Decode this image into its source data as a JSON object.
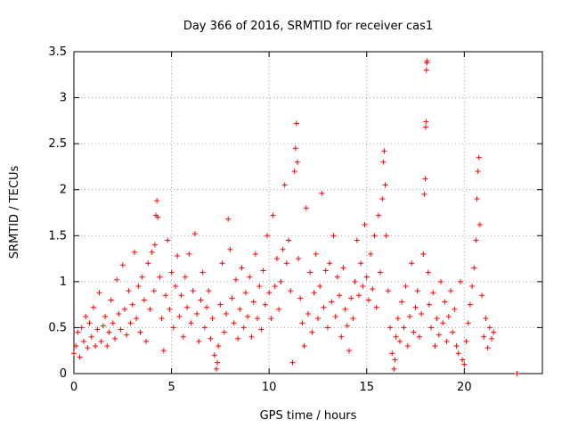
{
  "chart_data": {
    "type": "scatter",
    "title": "Day 366 of 2016, SRMTID for receiver cas1",
    "xlabel": "GPS time / hours",
    "ylabel": "SRMTID / TECUs",
    "xlim": [
      0,
      24
    ],
    "ylim": [
      0,
      3.5
    ],
    "xticks": [
      0,
      5,
      10,
      15,
      20
    ],
    "xtick_labels": [
      "0",
      "5",
      "10",
      "15",
      "20"
    ],
    "yticks": [
      0,
      0.5,
      1,
      1.5,
      2,
      2.5,
      3,
      3.5
    ],
    "ytick_labels": [
      "0",
      "0.5",
      "1",
      "1.5",
      "2",
      "2.5",
      "3",
      "3.5"
    ],
    "grid": true,
    "marker": "+",
    "color": "#ff0000",
    "series": [
      {
        "name": "SRMTID",
        "points": [
          [
            0.0,
            0.22
          ],
          [
            0.1,
            0.3
          ],
          [
            0.2,
            0.45
          ],
          [
            0.3,
            0.18
          ],
          [
            0.4,
            0.5
          ],
          [
            0.5,
            0.35
          ],
          [
            0.6,
            0.62
          ],
          [
            0.7,
            0.28
          ],
          [
            0.8,
            0.55
          ],
          [
            0.9,
            0.4
          ],
          [
            1.0,
            0.72
          ],
          [
            1.1,
            0.3
          ],
          [
            1.2,
            0.48
          ],
          [
            1.3,
            0.88
          ],
          [
            1.4,
            0.35
          ],
          [
            1.5,
            0.52
          ],
          [
            1.6,
            0.62
          ],
          [
            1.7,
            0.3
          ],
          [
            1.8,
            0.45
          ],
          [
            1.9,
            0.8
          ],
          [
            2.0,
            0.55
          ],
          [
            2.1,
            0.38
          ],
          [
            2.2,
            1.02
          ],
          [
            2.3,
            0.65
          ],
          [
            2.4,
            0.48
          ],
          [
            2.5,
            1.18
          ],
          [
            2.6,
            0.7
          ],
          [
            2.7,
            0.42
          ],
          [
            2.8,
            0.9
          ],
          [
            2.9,
            0.55
          ],
          [
            3.0,
            0.75
          ],
          [
            3.1,
            1.32
          ],
          [
            3.2,
            0.6
          ],
          [
            3.3,
            0.95
          ],
          [
            3.4,
            0.45
          ],
          [
            3.5,
            1.05
          ],
          [
            3.6,
            0.8
          ],
          [
            3.7,
            0.35
          ],
          [
            3.8,
            1.2
          ],
          [
            3.9,
            0.7
          ],
          [
            4.0,
            1.32
          ],
          [
            4.1,
            0.9
          ],
          [
            4.15,
            1.4
          ],
          [
            4.2,
            1.72
          ],
          [
            4.25,
            1.88
          ],
          [
            4.3,
            1.7
          ],
          [
            4.4,
            1.05
          ],
          [
            4.5,
            0.6
          ],
          [
            4.6,
            0.25
          ],
          [
            4.7,
            0.85
          ],
          [
            4.8,
            1.45
          ],
          [
            4.9,
            0.7
          ],
          [
            5.0,
            1.1
          ],
          [
            5.1,
            0.5
          ],
          [
            5.2,
            0.95
          ],
          [
            5.3,
            1.28
          ],
          [
            5.4,
            0.62
          ],
          [
            5.5,
            0.85
          ],
          [
            5.6,
            0.4
          ],
          [
            5.7,
            1.05
          ],
          [
            5.8,
            0.72
          ],
          [
            5.9,
            1.3
          ],
          [
            6.0,
            0.55
          ],
          [
            6.1,
            0.9
          ],
          [
            6.2,
            1.52
          ],
          [
            6.3,
            0.65
          ],
          [
            6.4,
            0.35
          ],
          [
            6.5,
            0.8
          ],
          [
            6.6,
            1.1
          ],
          [
            6.7,
            0.5
          ],
          [
            6.8,
            0.72
          ],
          [
            6.9,
            0.9
          ],
          [
            7.0,
            0.38
          ],
          [
            7.1,
            0.6
          ],
          [
            7.2,
            0.2
          ],
          [
            7.3,
            0.05
          ],
          [
            7.35,
            0.12
          ],
          [
            7.4,
            0.3
          ],
          [
            7.5,
            0.75
          ],
          [
            7.6,
            1.2
          ],
          [
            7.7,
            0.45
          ],
          [
            7.8,
            0.65
          ],
          [
            7.9,
            1.68
          ],
          [
            8.0,
            1.35
          ],
          [
            8.1,
            0.82
          ],
          [
            8.2,
            0.55
          ],
          [
            8.3,
            1.02
          ],
          [
            8.4,
            0.38
          ],
          [
            8.5,
            0.7
          ],
          [
            8.6,
            1.15
          ],
          [
            8.7,
            0.5
          ],
          [
            8.8,
            0.88
          ],
          [
            8.9,
            0.62
          ],
          [
            9.0,
            1.05
          ],
          [
            9.1,
            0.4
          ],
          [
            9.2,
            0.78
          ],
          [
            9.3,
            1.3
          ],
          [
            9.4,
            0.6
          ],
          [
            9.5,
            0.95
          ],
          [
            9.6,
            0.48
          ],
          [
            9.7,
            1.12
          ],
          [
            9.8,
            0.75
          ],
          [
            9.9,
            1.5
          ],
          [
            10.0,
            0.88
          ],
          [
            10.1,
            0.6
          ],
          [
            10.2,
            1.72
          ],
          [
            10.3,
            0.95
          ],
          [
            10.4,
            1.25
          ],
          [
            10.5,
            0.7
          ],
          [
            10.6,
            1.0
          ],
          [
            10.7,
            1.35
          ],
          [
            10.8,
            2.05
          ],
          [
            10.9,
            1.2
          ],
          [
            11.0,
            1.45
          ],
          [
            11.1,
            0.9
          ],
          [
            11.2,
            0.12
          ],
          [
            11.3,
            2.2
          ],
          [
            11.35,
            2.45
          ],
          [
            11.4,
            2.72
          ],
          [
            11.45,
            2.3
          ],
          [
            11.5,
            1.25
          ],
          [
            11.6,
            0.82
          ],
          [
            11.7,
            0.55
          ],
          [
            11.8,
            0.3
          ],
          [
            11.9,
            1.8
          ],
          [
            12.0,
            0.65
          ],
          [
            12.1,
            1.1
          ],
          [
            12.2,
            0.45
          ],
          [
            12.3,
            0.88
          ],
          [
            12.4,
            1.3
          ],
          [
            12.5,
            0.6
          ],
          [
            12.6,
            0.95
          ],
          [
            12.7,
            1.96
          ],
          [
            12.8,
            0.72
          ],
          [
            12.9,
            1.12
          ],
          [
            13.0,
            0.5
          ],
          [
            13.1,
            1.2
          ],
          [
            13.2,
            0.78
          ],
          [
            13.3,
            1.5
          ],
          [
            13.4,
            0.62
          ],
          [
            13.5,
            1.05
          ],
          [
            13.6,
            0.85
          ],
          [
            13.7,
            0.4
          ],
          [
            13.8,
            1.15
          ],
          [
            13.9,
            0.7
          ],
          [
            14.0,
            0.52
          ],
          [
            14.1,
            0.25
          ],
          [
            14.2,
            0.82
          ],
          [
            14.3,
            0.6
          ],
          [
            14.4,
            1.0
          ],
          [
            14.5,
            1.45
          ],
          [
            14.6,
            0.85
          ],
          [
            14.7,
            1.2
          ],
          [
            14.8,
            0.95
          ],
          [
            14.9,
            1.62
          ],
          [
            15.0,
            1.05
          ],
          [
            15.1,
            0.8
          ],
          [
            15.2,
            1.3
          ],
          [
            15.3,
            0.92
          ],
          [
            15.4,
            1.5
          ],
          [
            15.5,
            0.72
          ],
          [
            15.6,
            1.72
          ],
          [
            15.7,
            1.1
          ],
          [
            15.8,
            1.9
          ],
          [
            15.85,
            2.3
          ],
          [
            15.9,
            2.42
          ],
          [
            15.95,
            2.05
          ],
          [
            16.0,
            1.5
          ],
          [
            16.1,
            0.9
          ],
          [
            16.2,
            0.5
          ],
          [
            16.3,
            0.22
          ],
          [
            16.4,
            0.05
          ],
          [
            16.45,
            0.15
          ],
          [
            16.5,
            0.4
          ],
          [
            16.6,
            0.6
          ],
          [
            16.7,
            0.35
          ],
          [
            16.8,
            0.78
          ],
          [
            16.9,
            0.5
          ],
          [
            17.0,
            0.95
          ],
          [
            17.1,
            0.3
          ],
          [
            17.2,
            0.62
          ],
          [
            17.3,
            1.2
          ],
          [
            17.4,
            0.45
          ],
          [
            17.5,
            0.72
          ],
          [
            17.6,
            0.9
          ],
          [
            17.7,
            0.4
          ],
          [
            17.8,
            0.65
          ],
          [
            17.9,
            1.3
          ],
          [
            17.95,
            1.95
          ],
          [
            18.0,
            2.12
          ],
          [
            18.02,
            2.68
          ],
          [
            18.04,
            2.74
          ],
          [
            18.06,
            3.3
          ],
          [
            18.08,
            3.38
          ],
          [
            18.1,
            3.4
          ],
          [
            18.15,
            1.1
          ],
          [
            18.2,
            0.75
          ],
          [
            18.3,
            0.5
          ],
          [
            18.4,
            0.88
          ],
          [
            18.5,
            0.3
          ],
          [
            18.6,
            0.6
          ],
          [
            18.7,
            0.42
          ],
          [
            18.8,
            1.0
          ],
          [
            18.9,
            0.55
          ],
          [
            19.0,
            0.78
          ],
          [
            19.1,
            0.35
          ],
          [
            19.2,
            0.62
          ],
          [
            19.3,
            0.9
          ],
          [
            19.4,
            0.45
          ],
          [
            19.5,
            0.7
          ],
          [
            19.6,
            0.3
          ],
          [
            19.7,
            0.22
          ],
          [
            19.8,
            1.0
          ],
          [
            19.9,
            0.15
          ],
          [
            20.0,
            0.1
          ],
          [
            20.1,
            0.35
          ],
          [
            20.2,
            0.55
          ],
          [
            20.3,
            0.75
          ],
          [
            20.4,
            0.95
          ],
          [
            20.5,
            1.15
          ],
          [
            20.6,
            1.45
          ],
          [
            20.65,
            1.9
          ],
          [
            20.7,
            2.2
          ],
          [
            20.75,
            2.35
          ],
          [
            20.8,
            1.62
          ],
          [
            20.9,
            0.85
          ],
          [
            21.0,
            0.4
          ],
          [
            21.1,
            0.6
          ],
          [
            21.2,
            0.28
          ],
          [
            21.3,
            0.5
          ],
          [
            21.4,
            0.38
          ],
          [
            21.5,
            0.45
          ],
          [
            22.7,
            0.0
          ]
        ]
      }
    ]
  }
}
